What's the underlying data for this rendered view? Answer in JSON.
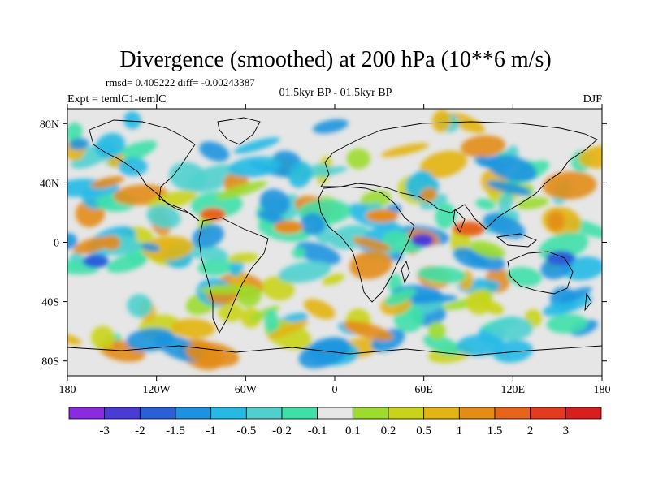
{
  "chart_data": {
    "type": "heatmap",
    "title": "Divergence (smoothed) at 200 hPa (10**6 m/s)",
    "stats": "rmsd= 0.405222 diff= -0.00243387",
    "period": "01.5kyr BP - 01.5kyr BP",
    "experiment": "Expt = temlC1-temlC",
    "season": "DJF",
    "x_ticks": [
      "180",
      "120W",
      "60W",
      "0",
      "60E",
      "120E",
      "180"
    ],
    "y_ticks": [
      "80N",
      "40N",
      "0",
      "40S",
      "80S"
    ],
    "x_range": [
      -180,
      180
    ],
    "y_range": [
      -90,
      90
    ],
    "colorbar": {
      "labels": [
        "-3",
        "-2",
        "-1.5",
        "-1",
        "-0.5",
        "-0.2",
        "-0.1",
        "0.1",
        "0.2",
        "0.5",
        "1",
        "1.5",
        "2",
        "3"
      ],
      "colors": [
        "#8a2be2",
        "#4b3bd6",
        "#2a5fd8",
        "#1d93df",
        "#25b9e6",
        "#4fd0cf",
        "#3fe0a8",
        "#e6e6e6",
        "#9bdc2c",
        "#c9d418",
        "#e3b412",
        "#e38c16",
        "#e6641c",
        "#e63a1e",
        "#d91e1e"
      ]
    }
  }
}
